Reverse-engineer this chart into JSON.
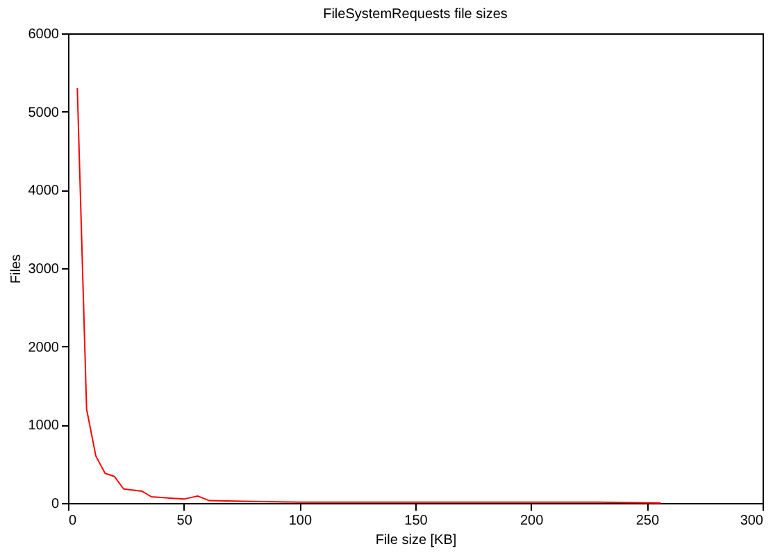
{
  "chart_data": {
    "type": "line",
    "title": "FileSystemRequests file sizes",
    "xlabel": "File size [KB]",
    "ylabel": "Files",
    "x": [
      4,
      8,
      12,
      16,
      20,
      24,
      32,
      36,
      50,
      56,
      61,
      80,
      100,
      120,
      150,
      175,
      200,
      230,
      256
    ],
    "series": [
      {
        "color": "#ff0000",
        "values": [
          5300,
          1200,
          600,
          380,
          340,
          180,
          150,
          80,
          50,
          90,
          30,
          20,
          10,
          10,
          10,
          10,
          10,
          10,
          0
        ]
      }
    ],
    "xlim": [
      0,
      300
    ],
    "xticks": [
      0,
      50,
      100,
      150,
      200,
      250,
      300
    ],
    "ylim": [
      0,
      6000
    ],
    "yticks": [
      0,
      1000,
      2000,
      3000,
      4000,
      5000,
      6000
    ],
    "grid": false,
    "legend": false
  }
}
